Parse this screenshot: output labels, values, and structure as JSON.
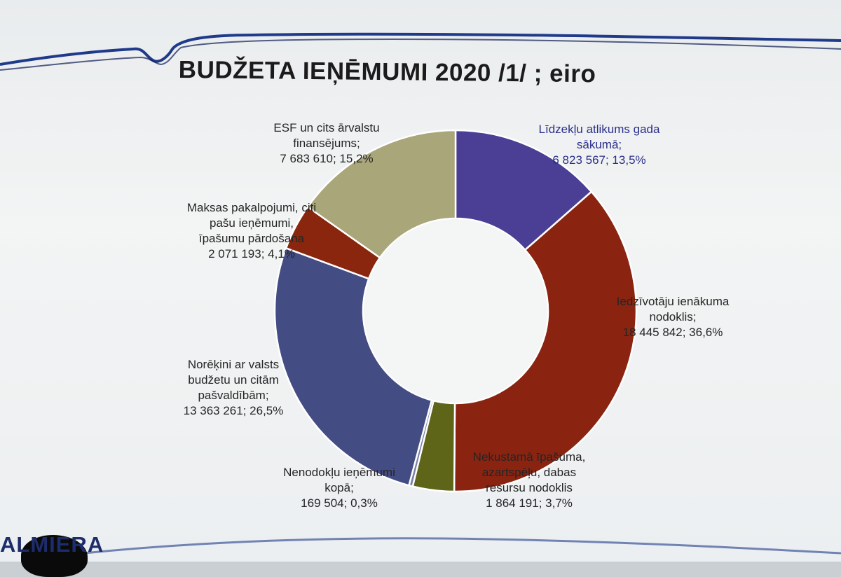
{
  "slide": {
    "title": "BUDŽETA IEŅĒMUMI 2020 /1/ ; eiro",
    "logo_text": "ALMIERA",
    "colors": {
      "background": "#eceff1",
      "wave": "#1f3a8a",
      "wave_dark": "#0f1c55"
    }
  },
  "chart_data": {
    "type": "pie",
    "variant": "doughnut",
    "title": "BUDŽETA IEŅĒMUMI 2020 /1/ ; eiro",
    "legend": "none",
    "slices": [
      {
        "label_lines": [
          "Līdzekļu atlikums gada",
          "sākumā;",
          "6 823 567; 13,5%"
        ],
        "value": 6823567,
        "percent": 13.5,
        "color": "#4a3f94"
      },
      {
        "label_lines": [
          "Iedzīvotāju ienākuma",
          "nodoklis;",
          "18 445 842; 36,6%"
        ],
        "value": 18445842,
        "percent": 36.6,
        "color": "#8a2411"
      },
      {
        "label_lines": [
          "Nekustamā īpašuma,",
          "azartspēļu, dabas",
          "resursu nodoklis",
          "1 864 191; 3,7%"
        ],
        "value": 1864191,
        "percent": 3.7,
        "color": "#5e6418"
      },
      {
        "label_lines": [
          "Nenodokļu ieņēmumi",
          "kopā;",
          "169 504; 0,3%"
        ],
        "value": 169504,
        "percent": 0.3,
        "color": "#7a7fa8"
      },
      {
        "label_lines": [
          "Norēķini ar valsts",
          "budžetu un citām",
          "pašvaldībām;",
          "13 363 261; 26,5%"
        ],
        "value": 13363261,
        "percent": 26.5,
        "color": "#444c84"
      },
      {
        "label_lines": [
          "Maksas pakalpojumi, citi",
          "pašu ieņēmumi,",
          "īpašumu pārdošana",
          "2 071 193; 4,1%"
        ],
        "value": 2071193,
        "percent": 4.1,
        "color": "#8a260d"
      },
      {
        "label_lines": [
          "ESF un cits ārvalstu",
          "finansējums;",
          "7 683 610; 15,2%"
        ],
        "value": 7683610,
        "percent": 15.2,
        "color": "#a9a67a"
      }
    ]
  }
}
